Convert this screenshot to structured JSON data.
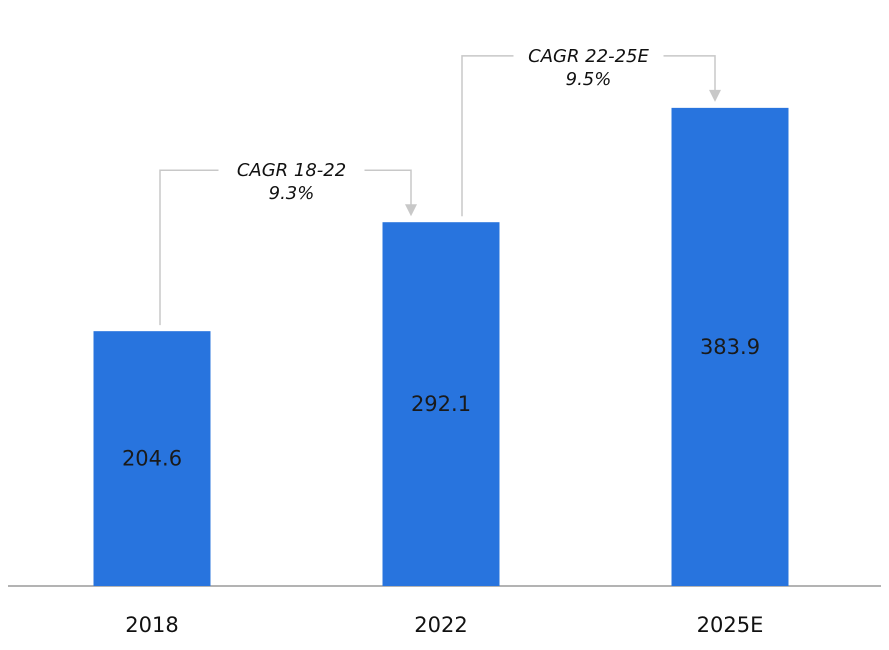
{
  "chart_data": {
    "type": "bar",
    "categories": [
      "2018",
      "2022",
      "2025E"
    ],
    "values": [
      204.6,
      292.1,
      383.9
    ],
    "value_labels": [
      "204.6",
      "292.1",
      "383.9"
    ],
    "title": "",
    "xlabel": "",
    "ylabel": "",
    "ylim": [
      0,
      440
    ],
    "grid": false,
    "legend": "none",
    "colors": {
      "bar": "#2874DE",
      "bracket": "#c8c8c8",
      "baseline": "#9a9a9a"
    },
    "annotations": [
      {
        "from": "2018",
        "to": "2022",
        "label": "CAGR 18-22",
        "value": "9.3%"
      },
      {
        "from": "2022",
        "to": "2025E",
        "label": "CAGR 22-25E",
        "value": "9.5%"
      }
    ]
  }
}
